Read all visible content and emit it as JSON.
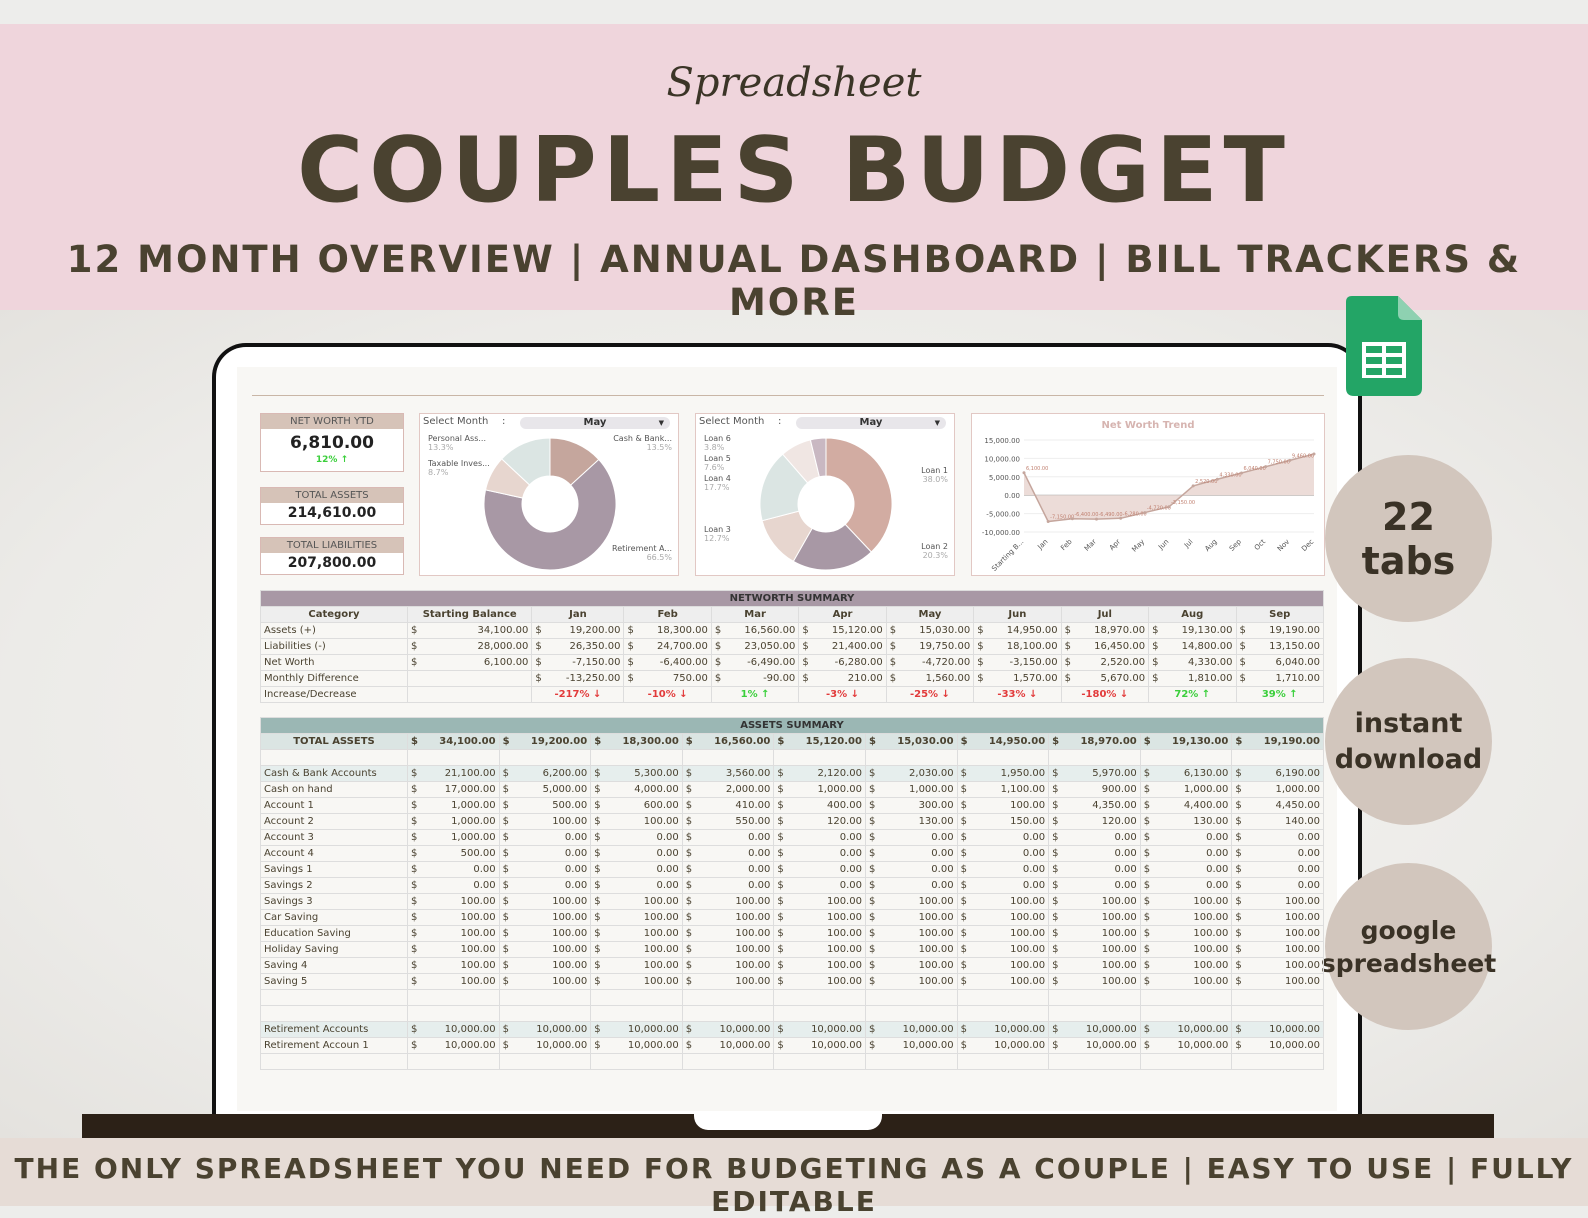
{
  "banner": {
    "script": "Spreadsheet",
    "title": "COUPLES BUDGET",
    "subtitle": "12 MONTH OVERVIEW | ANNUAL DASHBOARD | BILL TRACKERS & MORE"
  },
  "footer": {
    "text": "THE ONLY SPREADSHEET YOU NEED FOR BUDGETING AS A COUPLE | EASY TO USE | FULLY EDITABLE"
  },
  "badges": {
    "tabs_num": "22",
    "tabs_word": "tabs",
    "download1": "instant",
    "download2": "download",
    "google1": "google",
    "google2": "spreadsheet"
  },
  "kpis": {
    "net_worth_label": "NET WORTH YTD",
    "net_worth_value": "6,810.00",
    "net_worth_change": "12% ↑",
    "assets_label": "TOTAL ASSETS",
    "assets_value": "214,610.00",
    "liab_label": "TOTAL LIABILITIES",
    "liab_value": "207,800.00"
  },
  "donut1": {
    "select_label": "Select Month",
    "colon": ":",
    "month": "May",
    "labels": [
      {
        "name": "Personal Ass...",
        "pct": "13.3%"
      },
      {
        "name": "Taxable Inves...",
        "pct": "8.7%"
      },
      {
        "name": "Cash & Bank...",
        "pct": "13.5%"
      },
      {
        "name": "Retirement A...",
        "pct": "66.5%"
      }
    ],
    "colors": [
      "#c5a69d",
      "#a898a5",
      "#e7d6cf",
      "#dbe5e3"
    ]
  },
  "donut2": {
    "select_label": "Select Month",
    "colon": ":",
    "month": "May",
    "labels": [
      {
        "name": "Loan 6",
        "pct": "3.8%"
      },
      {
        "name": "Loan 5",
        "pct": "7.6%"
      },
      {
        "name": "Loan 4",
        "pct": "17.7%"
      },
      {
        "name": "Loan 3",
        "pct": "12.7%"
      },
      {
        "name": "Loan 1",
        "pct": "38.0%"
      },
      {
        "name": "Loan 2",
        "pct": "20.3%"
      }
    ],
    "colors": [
      "#d2aca2",
      "#a898a5",
      "#e7d6cf",
      "#dbe5e3",
      "#f0e6e3",
      "#c9b8c2"
    ]
  },
  "chart_data": {
    "type": "area",
    "title": "Net Worth Trend",
    "categories": [
      "Starting B...",
      "Jan",
      "Feb",
      "Mar",
      "Apr",
      "May",
      "Jun",
      "Jul",
      "Aug",
      "Sep",
      "Oct",
      "Nov",
      "Dec"
    ],
    "values": [
      6100,
      -7150,
      -6400,
      -6490,
      -6280,
      -4720,
      -3150,
      2520,
      4330,
      6040,
      7750,
      9460,
      11200
    ],
    "point_labels": [
      "6,100.00",
      "-7,150.00",
      "-6,400.00",
      "-6,490.00",
      "-6,280.00",
      "-4,720.00",
      "-3,150.00",
      "2,520.00",
      "4,330.00",
      "6,040.00",
      "7,750.00",
      "9,460.00",
      ""
    ],
    "yticks": [
      "15,000.00",
      "10,000.00",
      "5,000.00",
      "0.00",
      "-5,000.00",
      "-10,000.00"
    ],
    "ylim": [
      -10000,
      15000
    ],
    "color": "#c5a69d"
  },
  "networth": {
    "title": "NETWORTH SUMMARY",
    "headers": [
      "Category",
      "Starting Balance",
      "Jan",
      "Feb",
      "Mar",
      "Apr",
      "May",
      "Jun",
      "Jul",
      "Aug",
      "Sep"
    ],
    "rows": [
      {
        "label": "Assets (+)",
        "vals": [
          "34,100.00",
          "19,200.00",
          "18,300.00",
          "16,560.00",
          "15,120.00",
          "15,030.00",
          "14,950.00",
          "18,970.00",
          "19,130.00",
          "19,190.00"
        ]
      },
      {
        "label": "Liabilities (-)",
        "vals": [
          "28,000.00",
          "26,350.00",
          "24,700.00",
          "23,050.00",
          "21,400.00",
          "19,750.00",
          "18,100.00",
          "16,450.00",
          "14,800.00",
          "13,150.00"
        ]
      },
      {
        "label": "Net Worth",
        "vals": [
          "6,100.00",
          "-7,150.00",
          "-6,400.00",
          "-6,490.00",
          "-6,280.00",
          "-4,720.00",
          "-3,150.00",
          "2,520.00",
          "4,330.00",
          "6,040.00"
        ]
      },
      {
        "label": "Monthly Difference",
        "vals": [
          "",
          "-13,250.00",
          "750.00",
          "-90.00",
          "210.00",
          "1,560.00",
          "1,570.00",
          "5,670.00",
          "1,810.00",
          "1,710.00"
        ]
      }
    ],
    "pct_label": "Increase/Decrease",
    "pct": [
      {
        "v": "-217% ↓",
        "c": "red"
      },
      {
        "v": "-10% ↓",
        "c": "red"
      },
      {
        "v": "1% ↑",
        "c": "grn"
      },
      {
        "v": "-3% ↓",
        "c": "red"
      },
      {
        "v": "-25% ↓",
        "c": "red"
      },
      {
        "v": "-33% ↓",
        "c": "red"
      },
      {
        "v": "-180% ↓",
        "c": "red"
      },
      {
        "v": "72% ↑",
        "c": "grn"
      },
      {
        "v": "39% ↑",
        "c": "grn"
      }
    ]
  },
  "assets": {
    "title": "ASSETS SUMMARY",
    "total_label": "TOTAL ASSETS",
    "totals": [
      "34,100.00",
      "19,200.00",
      "18,300.00",
      "16,560.00",
      "15,120.00",
      "15,030.00",
      "14,950.00",
      "18,970.00",
      "19,130.00",
      "19,190.00"
    ],
    "groups": [
      {
        "label": "Cash & Bank Accounts",
        "vals": [
          "21,100.00",
          "6,200.00",
          "5,300.00",
          "3,560.00",
          "2,120.00",
          "2,030.00",
          "1,950.00",
          "5,970.00",
          "6,130.00",
          "6,190.00"
        ],
        "items": [
          {
            "label": "Cash on hand",
            "vals": [
              "17,000.00",
              "5,000.00",
              "4,000.00",
              "2,000.00",
              "1,000.00",
              "1,000.00",
              "1,100.00",
              "900.00",
              "1,000.00",
              "1,000.00"
            ]
          },
          {
            "label": "Account 1",
            "vals": [
              "1,000.00",
              "500.00",
              "600.00",
              "410.00",
              "400.00",
              "300.00",
              "100.00",
              "4,350.00",
              "4,400.00",
              "4,450.00"
            ]
          },
          {
            "label": "Account 2",
            "vals": [
              "1,000.00",
              "100.00",
              "100.00",
              "550.00",
              "120.00",
              "130.00",
              "150.00",
              "120.00",
              "130.00",
              "140.00"
            ]
          },
          {
            "label": "Account 3",
            "vals": [
              "1,000.00",
              "0.00",
              "0.00",
              "0.00",
              "0.00",
              "0.00",
              "0.00",
              "0.00",
              "0.00",
              "0.00"
            ]
          },
          {
            "label": "Account 4",
            "vals": [
              "500.00",
              "0.00",
              "0.00",
              "0.00",
              "0.00",
              "0.00",
              "0.00",
              "0.00",
              "0.00",
              "0.00"
            ]
          },
          {
            "label": "Savings 1",
            "vals": [
              "0.00",
              "0.00",
              "0.00",
              "0.00",
              "0.00",
              "0.00",
              "0.00",
              "0.00",
              "0.00",
              "0.00"
            ]
          },
          {
            "label": "Savings 2",
            "vals": [
              "0.00",
              "0.00",
              "0.00",
              "0.00",
              "0.00",
              "0.00",
              "0.00",
              "0.00",
              "0.00",
              "0.00"
            ]
          },
          {
            "label": "Savings 3",
            "vals": [
              "100.00",
              "100.00",
              "100.00",
              "100.00",
              "100.00",
              "100.00",
              "100.00",
              "100.00",
              "100.00",
              "100.00"
            ]
          },
          {
            "label": "Car Saving",
            "vals": [
              "100.00",
              "100.00",
              "100.00",
              "100.00",
              "100.00",
              "100.00",
              "100.00",
              "100.00",
              "100.00",
              "100.00"
            ]
          },
          {
            "label": "Education Saving",
            "vals": [
              "100.00",
              "100.00",
              "100.00",
              "100.00",
              "100.00",
              "100.00",
              "100.00",
              "100.00",
              "100.00",
              "100.00"
            ]
          },
          {
            "label": "Holiday Saving",
            "vals": [
              "100.00",
              "100.00",
              "100.00",
              "100.00",
              "100.00",
              "100.00",
              "100.00",
              "100.00",
              "100.00",
              "100.00"
            ]
          },
          {
            "label": "Saving 4",
            "vals": [
              "100.00",
              "100.00",
              "100.00",
              "100.00",
              "100.00",
              "100.00",
              "100.00",
              "100.00",
              "100.00",
              "100.00"
            ]
          },
          {
            "label": "Saving 5",
            "vals": [
              "100.00",
              "100.00",
              "100.00",
              "100.00",
              "100.00",
              "100.00",
              "100.00",
              "100.00",
              "100.00",
              "100.00"
            ]
          }
        ]
      },
      {
        "label": "Retirement Accounts",
        "vals": [
          "10,000.00",
          "10,000.00",
          "10,000.00",
          "10,000.00",
          "10,000.00",
          "10,000.00",
          "10,000.00",
          "10,000.00",
          "10,000.00",
          "10,000.00"
        ],
        "items": [
          {
            "label": "Retirement Accoun 1",
            "vals": [
              "10,000.00",
              "10,000.00",
              "10,000.00",
              "10,000.00",
              "10,000.00",
              "10,000.00",
              "10,000.00",
              "10,000.00",
              "10,000.00",
              "10,000.00"
            ]
          }
        ]
      }
    ]
  },
  "currency": "$"
}
